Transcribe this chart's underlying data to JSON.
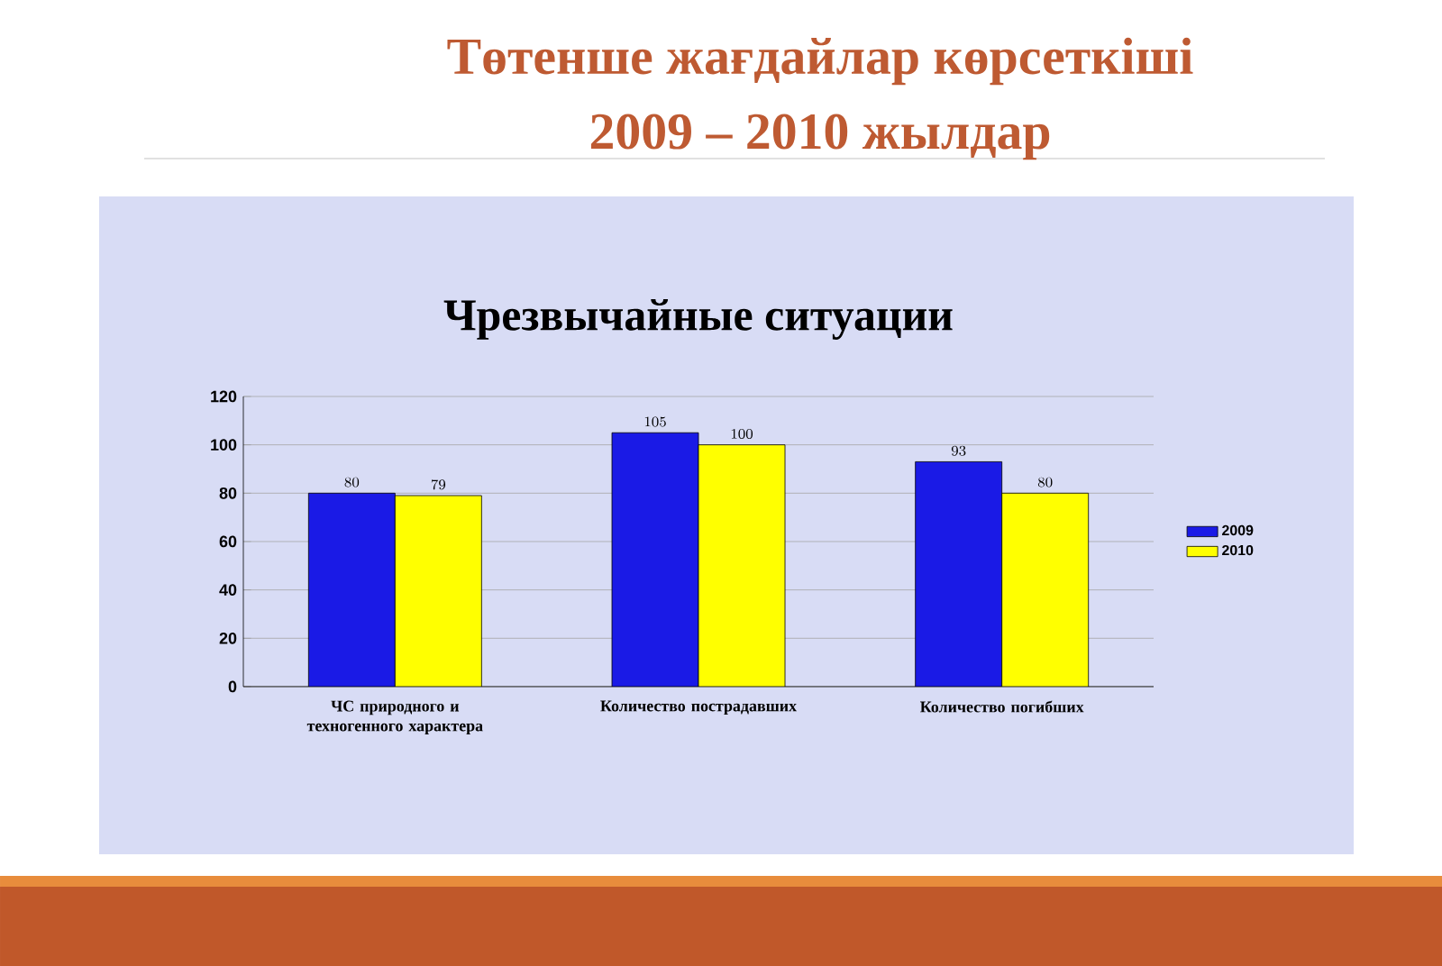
{
  "chart_data": {
    "type": "bar",
    "title": "Чрезвычайные ситуации",
    "annotations": [
      "Төтенше жағдайлар көрсеткіші",
      "2009 – 2010 жылдар"
    ],
    "categories": [
      "ЧС природного и техногенного характера",
      "Количество пострадавших",
      "Количество погибших"
    ],
    "series": [
      {
        "name": "2009",
        "color": "#1a1ae6",
        "values": [
          80,
          105,
          93
        ]
      },
      {
        "name": "2010",
        "color": "#ffff00",
        "values": [
          79,
          100,
          80
        ]
      }
    ],
    "ylim": [
      0,
      120
    ],
    "yticks": [
      0,
      20,
      40,
      60,
      80,
      100,
      120
    ],
    "grid": "y",
    "legend": "right",
    "data_labels": true
  }
}
